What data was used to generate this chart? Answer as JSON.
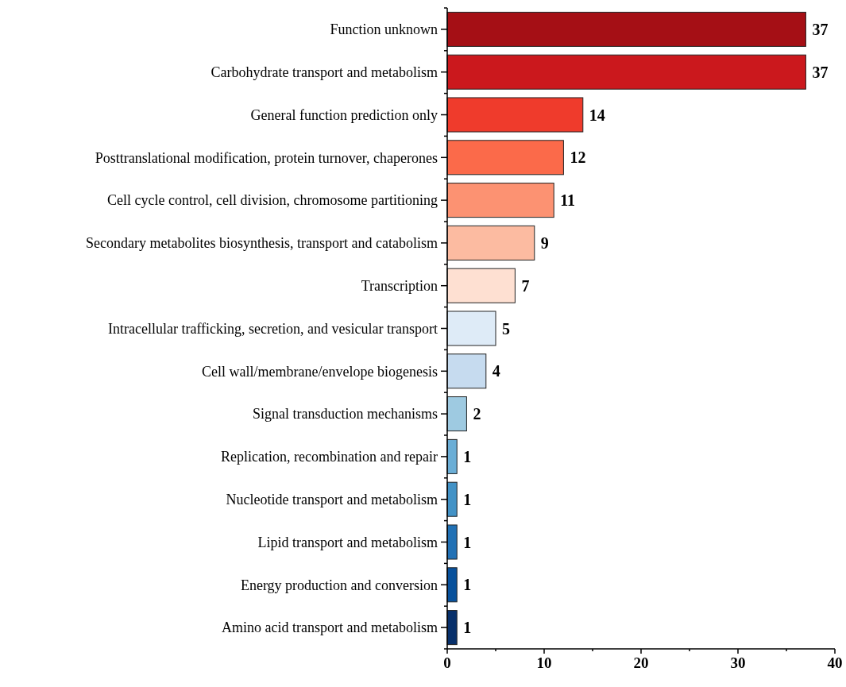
{
  "chart_data": {
    "type": "bar",
    "orientation": "horizontal",
    "categories": [
      "Function unknown",
      "Carbohydrate transport and metabolism",
      "General function prediction only",
      "Posttranslational modification, protein turnover, chaperones",
      "Cell cycle control, cell division, chromosome partitioning",
      "Secondary metabolites biosynthesis, transport and catabolism",
      "Transcription",
      "Intracellular trafficking, secretion, and vesicular transport",
      "Cell wall/membrane/envelope biogenesis",
      "Signal transduction mechanisms",
      "Replication, recombination and repair",
      "Nucleotide transport and metabolism",
      "Lipid transport and metabolism",
      "Energy production and conversion",
      "Amino acid transport and metabolism"
    ],
    "values": [
      37,
      37,
      14,
      12,
      11,
      9,
      7,
      5,
      4,
      2,
      1,
      1,
      1,
      1,
      1
    ],
    "colors": [
      "#a50f15",
      "#cb181d",
      "#ef3b2c",
      "#fb6a4a",
      "#fc9272",
      "#fcbba1",
      "#fee0d2",
      "#deebf7",
      "#c6dbef",
      "#9ecae1",
      "#6baed6",
      "#4292c6",
      "#2171b5",
      "#08519c",
      "#08306b"
    ],
    "xlim": [
      0,
      40
    ],
    "xticks": [
      0,
      {
        "value": 5,
        "label": null
      },
      10,
      {
        "value": 15,
        "label": null
      },
      20,
      {
        "value": 25,
        "label": null
      },
      30,
      {
        "value": 35,
        "label": null
      },
      40
    ],
    "data_labels": true,
    "grid": false
  }
}
